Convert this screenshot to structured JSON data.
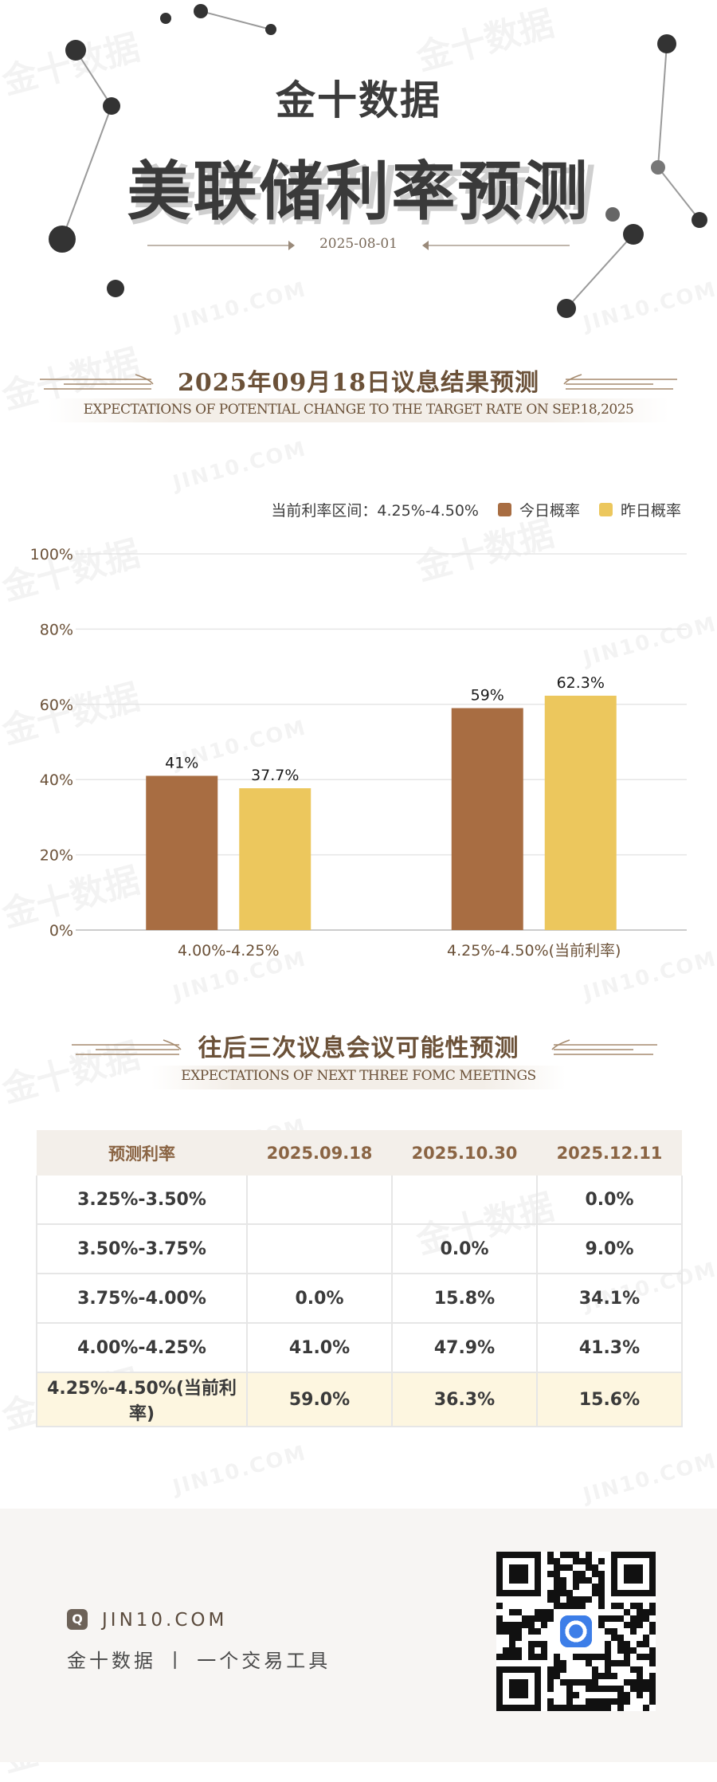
{
  "header": {
    "brand": "金十数据",
    "title": "美联储利率预测",
    "date": "2025-08-01"
  },
  "watermark": {
    "cn": "金十数据",
    "en": "JIN10.COM"
  },
  "section1": {
    "title": "2025年09月18日议息结果预测",
    "subtitle": "EXPECTATIONS OF POTENTIAL CHANGE TO THE TARGET RATE ON SEP.18,2025"
  },
  "legend": {
    "current_rate_label": "当前利率区间：4.25%-4.50%",
    "today_label": "今日概率",
    "yesterday_label": "昨日概率"
  },
  "chart_data": {
    "type": "bar",
    "categories": [
      "4.00%-4.25%",
      "4.25%-4.50%(当前利率)"
    ],
    "series": [
      {
        "name": "今日概率",
        "values": [
          41,
          59
        ],
        "labels": [
          "41%",
          "59%"
        ],
        "color": "#a86d42"
      },
      {
        "name": "昨日概率",
        "values": [
          37.7,
          62.3
        ],
        "labels": [
          "37.7%",
          "62.3%"
        ],
        "color": "#ecc75d"
      }
    ],
    "yticks": [
      "0%",
      "20%",
      "40%",
      "60%",
      "80%",
      "100%"
    ],
    "ylim": [
      0,
      100
    ],
    "grid": true,
    "legend_position": "top-right"
  },
  "section2": {
    "title": "往后三次议息会议可能性预测",
    "subtitle": "EXPECTATIONS OF NEXT THREE FOMC MEETINGS"
  },
  "table": {
    "headers": [
      "预测利率",
      "2025.09.18",
      "2025.10.30",
      "2025.12.11"
    ],
    "rows": [
      [
        "3.25%-3.50%",
        "",
        "",
        "0.0%"
      ],
      [
        "3.50%-3.75%",
        "",
        "0.0%",
        "9.0%"
      ],
      [
        "3.75%-4.00%",
        "0.0%",
        "15.8%",
        "34.1%"
      ],
      [
        "4.00%-4.25%",
        "41.0%",
        "47.9%",
        "41.3%"
      ],
      [
        "4.25%-4.50%(当前利率)",
        "59.0%",
        "36.3%",
        "15.6%"
      ]
    ]
  },
  "footer": {
    "url": "JIN10.COM",
    "brand_line": "金十数据 丨 一个交易工具"
  },
  "colors": {
    "today": "#a86d42",
    "yesterday": "#ecc75d",
    "highlight_row": "#fdf6e0"
  }
}
